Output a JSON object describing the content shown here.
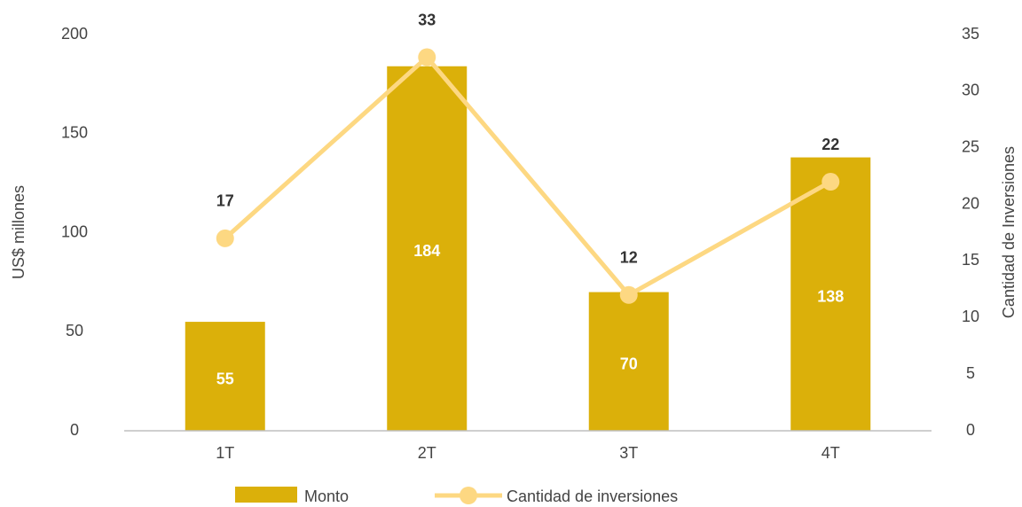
{
  "chart_data": {
    "type": "bar",
    "categories": [
      "1T",
      "2T",
      "3T",
      "4T"
    ],
    "series": [
      {
        "name": "Monto",
        "type": "bar",
        "color": "#dbb00a",
        "values": [
          55,
          184,
          70,
          138
        ]
      },
      {
        "name": "Cantidad de inversiones",
        "type": "line",
        "axis": "y2",
        "color": "#fdd882",
        "values": [
          17,
          33,
          12,
          22
        ]
      }
    ],
    "ylabel": "US$ millones",
    "y2label": "Cantidad de Inversiones",
    "ylim": [
      0,
      200
    ],
    "yticks": [
      0,
      50,
      100,
      150,
      200
    ],
    "y2lim": [
      0,
      35
    ],
    "y2ticks": [
      0,
      5,
      10,
      15,
      20,
      25,
      30,
      35
    ],
    "grid": false,
    "legend": "bottom"
  }
}
